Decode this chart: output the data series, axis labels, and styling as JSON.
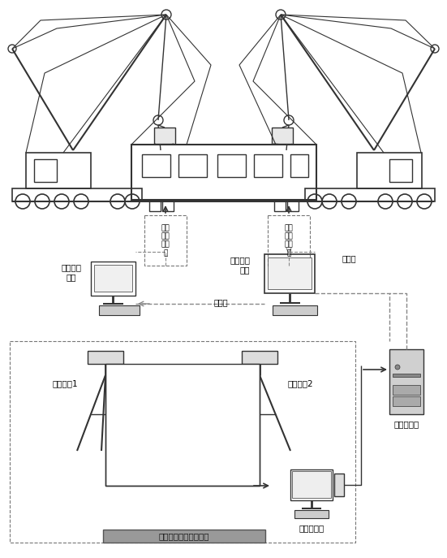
{
  "bg_color": "#ffffff",
  "line_color": "#333333",
  "dash_color": "#888888",
  "gray_light": "#cccccc",
  "gray_med": "#aaaaaa",
  "gray_dark": "#888888",
  "labels": {
    "inside_crane_left": "位于\n起重\n机内\n部",
    "inside_crane_right": "位于\n起重\n机内\n部",
    "sync_left": "同步显示\n终端",
    "sync_right": "同步显示\n终端",
    "lan_mid": "局域网",
    "lan_right": "局域网",
    "camera1": "数字相机1",
    "camera2": "数字相机2",
    "server": "后台服务器",
    "industrial_pc": "工业计算机",
    "bottom_label": "视觉测量终端组成部分"
  }
}
